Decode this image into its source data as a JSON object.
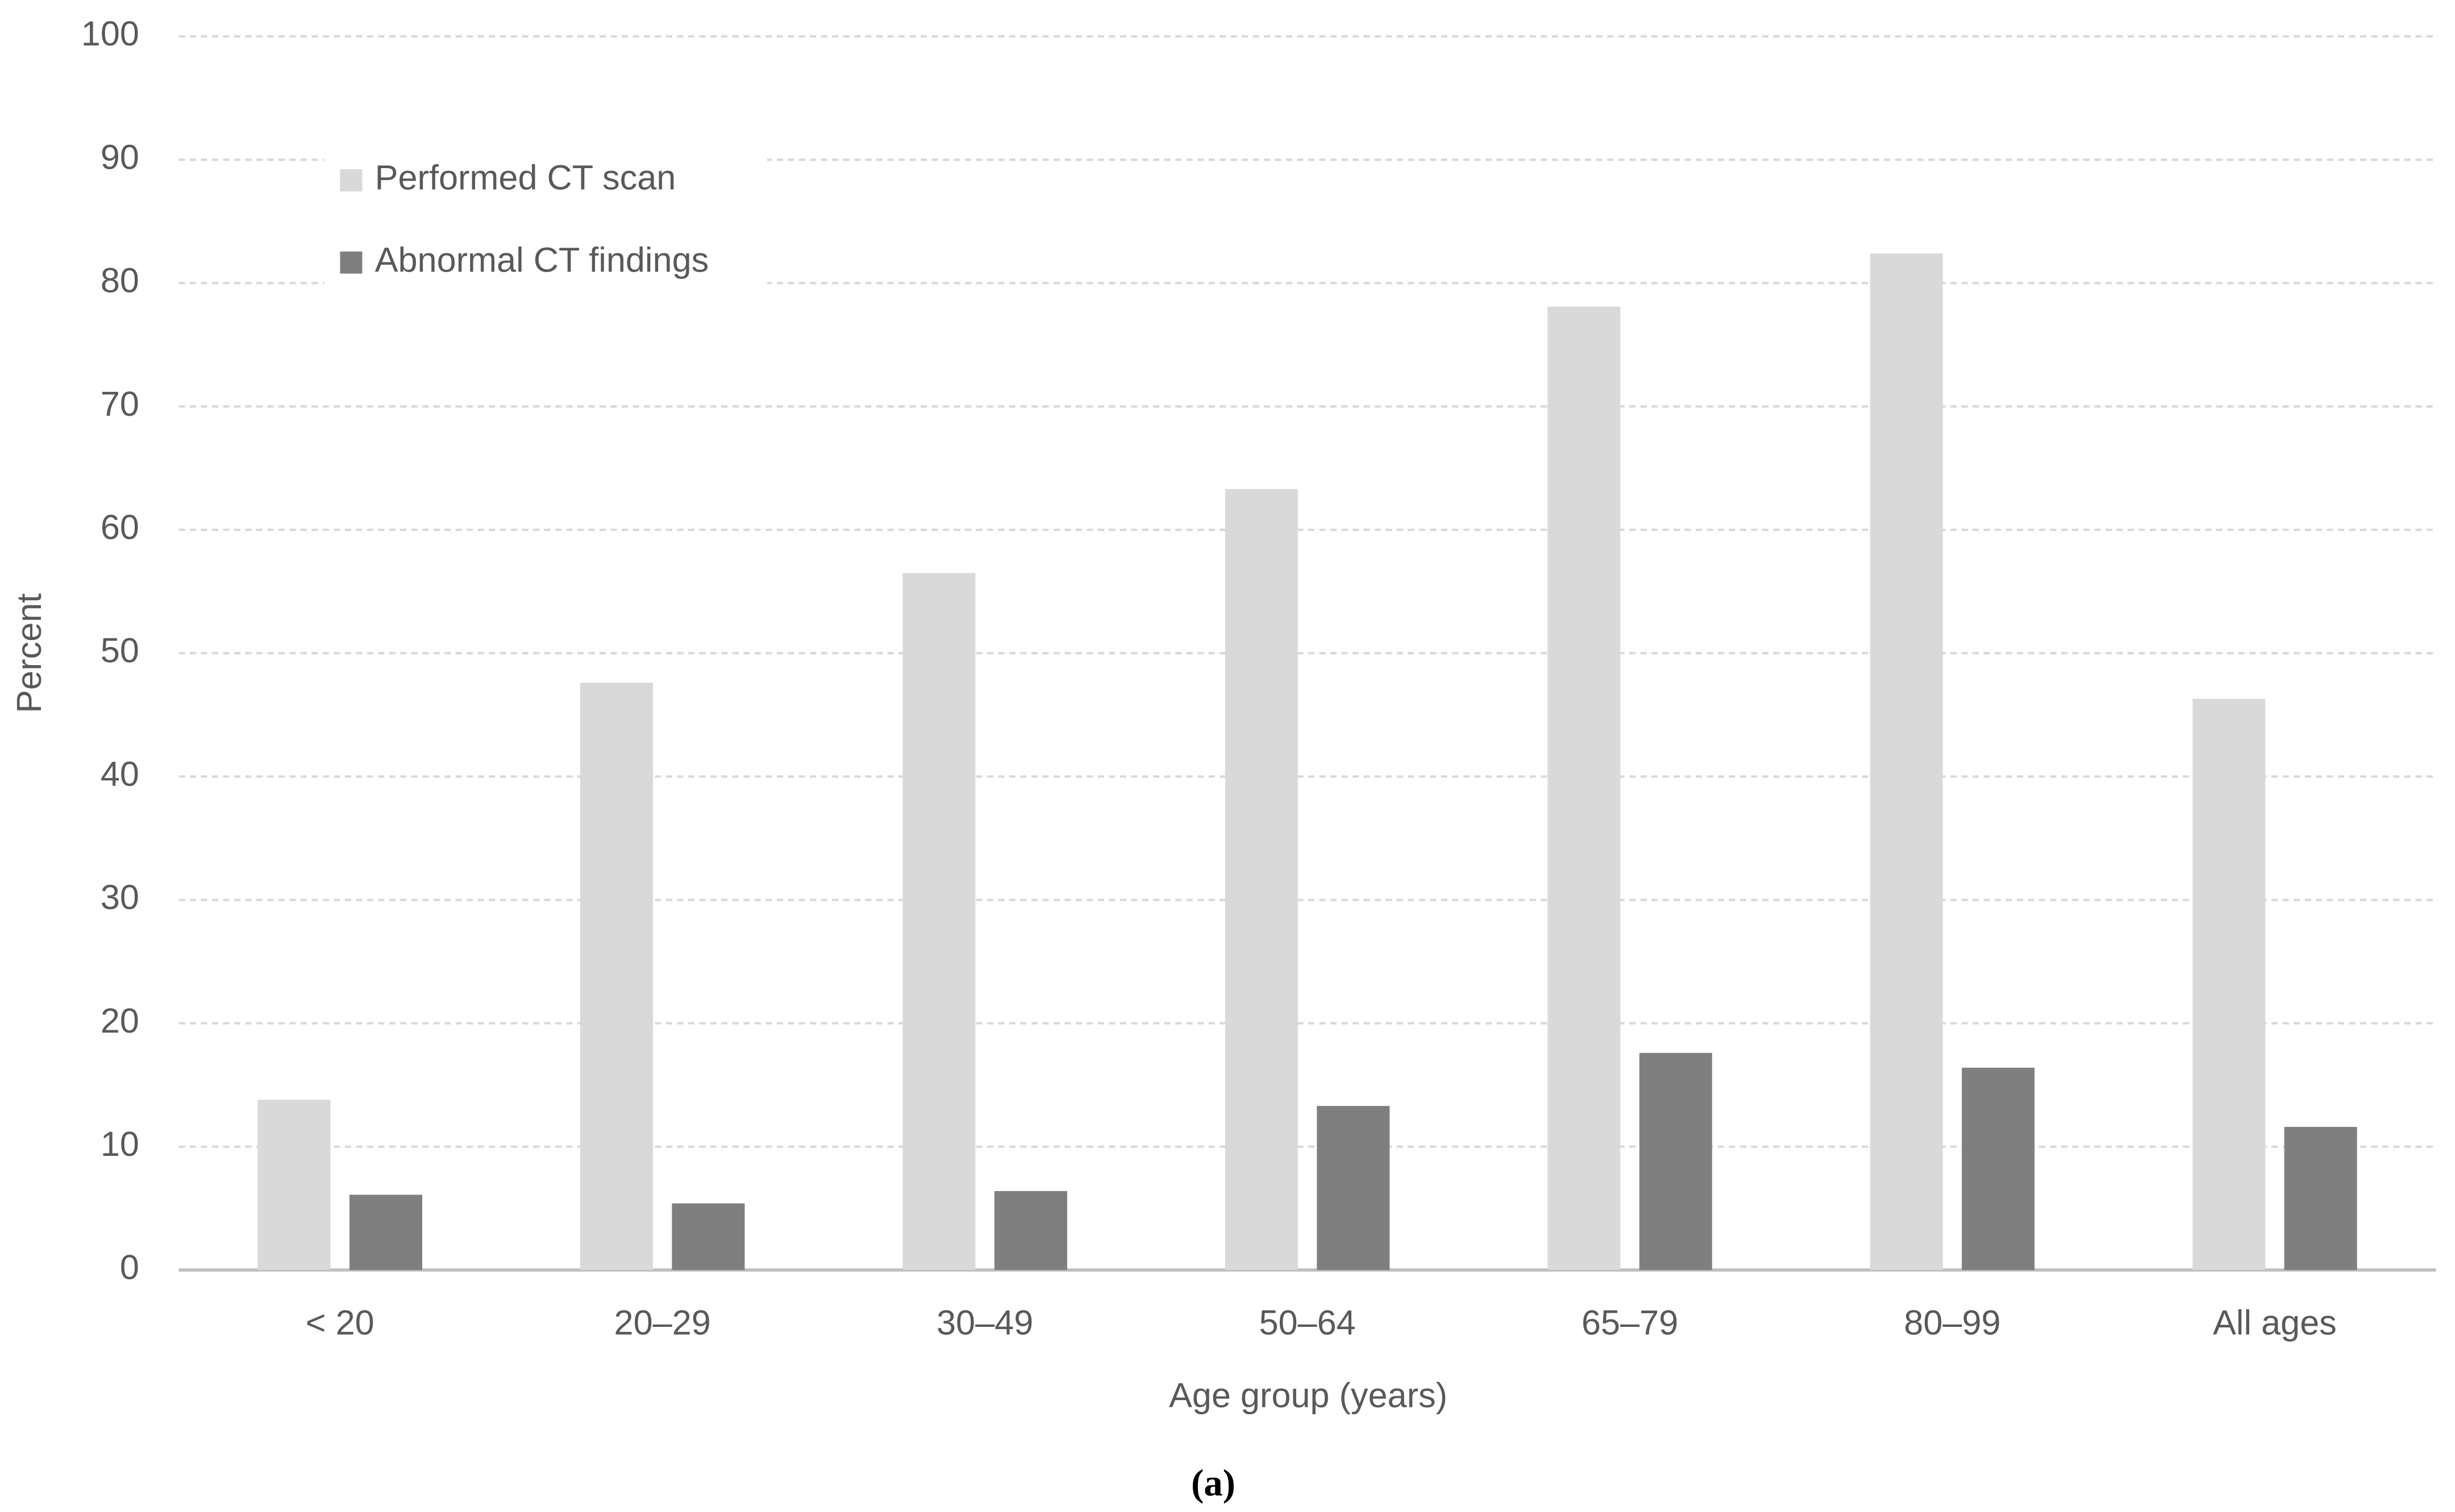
{
  "chart_data": {
    "type": "bar",
    "categories": [
      "< 20",
      "20–29",
      "30–49",
      "50–64",
      "65–79",
      "80–99",
      "All ages"
    ],
    "series": [
      {
        "name": "Performed CT scan",
        "color": "#d9d9d9",
        "values": [
          13.8,
          47.6,
          56.5,
          63.3,
          78.1,
          82.4,
          46.3
        ]
      },
      {
        "name": "Abnormal CT findings",
        "color": "#7f7f7f",
        "values": [
          6.1,
          5.4,
          6.4,
          13.3,
          17.6,
          16.4,
          11.6
        ]
      }
    ],
    "ylim": [
      0,
      100
    ],
    "yticks": [
      0,
      10,
      20,
      30,
      40,
      50,
      60,
      70,
      80,
      90,
      100
    ],
    "ylabel": "Percent",
    "xlabel": "Age group (years)",
    "caption": "(a)",
    "grid": true,
    "legend": "upper left"
  }
}
